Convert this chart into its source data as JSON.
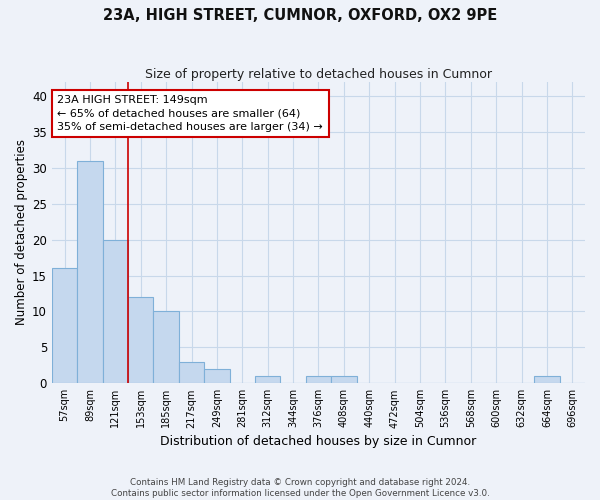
{
  "title_line1": "23A, HIGH STREET, CUMNOR, OXFORD, OX2 9PE",
  "title_line2": "Size of property relative to detached houses in Cumnor",
  "xlabel": "Distribution of detached houses by size in Cumnor",
  "ylabel": "Number of detached properties",
  "footer_line1": "Contains HM Land Registry data © Crown copyright and database right 2024.",
  "footer_line2": "Contains public sector information licensed under the Open Government Licence v3.0.",
  "bin_labels": [
    "57sqm",
    "89sqm",
    "121sqm",
    "153sqm",
    "185sqm",
    "217sqm",
    "249sqm",
    "281sqm",
    "312sqm",
    "344sqm",
    "376sqm",
    "408sqm",
    "440sqm",
    "472sqm",
    "504sqm",
    "536sqm",
    "568sqm",
    "600sqm",
    "632sqm",
    "664sqm",
    "696sqm"
  ],
  "bar_heights": [
    16,
    31,
    20,
    12,
    10,
    3,
    2,
    0,
    1,
    0,
    1,
    1,
    0,
    0,
    0,
    0,
    0,
    0,
    0,
    1,
    0
  ],
  "bar_color": "#c5d8ee",
  "bar_edge_color": "#7fb0d8",
  "grid_color": "#c8d8ea",
  "background_color": "#eef2f9",
  "vline_x_pos": 2.5,
  "vline_color": "#cc0000",
  "annotation_text": "23A HIGH STREET: 149sqm\n← 65% of detached houses are smaller (64)\n35% of semi-detached houses are larger (34) →",
  "annotation_box_facecolor": "#ffffff",
  "annotation_box_edgecolor": "#cc0000",
  "ylim": [
    0,
    42
  ],
  "yticks": [
    0,
    5,
    10,
    15,
    20,
    25,
    30,
    35,
    40
  ]
}
